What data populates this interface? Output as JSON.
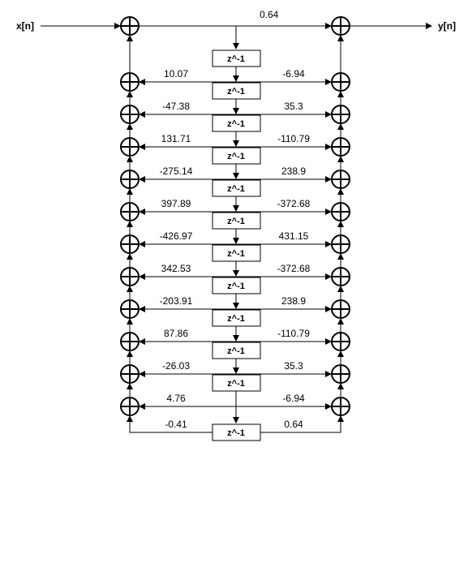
{
  "input_label": "x[n]",
  "output_label": "y[n]",
  "top_coefficient": "0.64",
  "delay_label": "z^-1",
  "left_coefficients": [
    "10.07",
    "-47.38",
    "131.71",
    "-275.14",
    "397.89",
    "-426.97",
    "342.53",
    "-203.91",
    "87.86",
    "-26.03",
    "4.76",
    "-0.41"
  ],
  "right_coefficients": [
    "-6.94",
    "35.3",
    "-110.79",
    "238.9",
    "-372.68",
    "431.15",
    "-372.68",
    "238.9",
    "-110.79",
    "35.3",
    "-6.94",
    "0.64"
  ]
}
